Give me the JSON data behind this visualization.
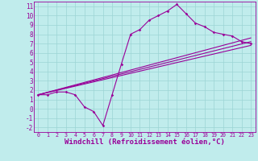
{
  "bg_color": "#c0ecec",
  "line_color": "#990099",
  "grid_color": "#9cd4d4",
  "xlabel": "Windchill (Refroidissement éolien,°C)",
  "xlim": [
    -0.5,
    23.5
  ],
  "ylim": [
    -2.5,
    11.5
  ],
  "xticks": [
    0,
    1,
    2,
    3,
    4,
    5,
    6,
    7,
    8,
    9,
    10,
    11,
    12,
    13,
    14,
    15,
    16,
    17,
    18,
    19,
    20,
    21,
    22,
    23
  ],
  "yticks": [
    -2,
    -1,
    0,
    1,
    2,
    3,
    4,
    5,
    6,
    7,
    8,
    9,
    10,
    11
  ],
  "trend1_x": [
    0,
    23
  ],
  "trend1_y": [
    1.5,
    6.8
  ],
  "trend2_x": [
    0,
    23
  ],
  "trend2_y": [
    1.5,
    7.2
  ],
  "trend3_x": [
    0,
    23
  ],
  "trend3_y": [
    1.5,
    7.6
  ],
  "zigzag_x": [
    0,
    1,
    2,
    3,
    4,
    5,
    6,
    7,
    8,
    9,
    10,
    11,
    12,
    13,
    14,
    15,
    16,
    17,
    18,
    19,
    20,
    21,
    22,
    23
  ],
  "zigzag_y": [
    1.5,
    1.5,
    1.8,
    1.8,
    1.5,
    0.2,
    -0.3,
    -1.8,
    1.5,
    4.8,
    8.0,
    8.5,
    9.5,
    10.0,
    10.5,
    11.2,
    10.2,
    9.2,
    8.8,
    8.2,
    8.0,
    7.8,
    7.2,
    7.0
  ]
}
